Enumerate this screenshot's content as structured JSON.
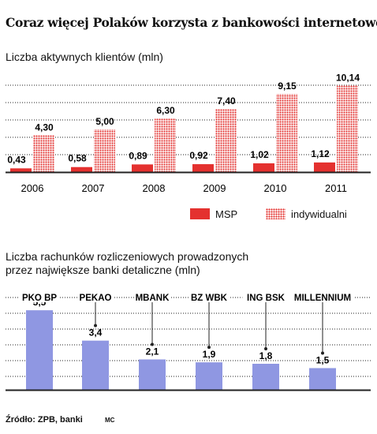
{
  "title": "Coraz więcej Polaków korzysta z bankowości internetowej",
  "chart1_subtitle": "Liczba aktywnych klientów (mln)",
  "chart2_subtitle": "Liczba rachunków rozliczeniowych prowadzonych przez największe banki detaliczne (mln)",
  "source": "Źródło: ZPB, banki",
  "author": "MC",
  "colors": {
    "msp": "#e4312f",
    "indywidualni": "#e4312f",
    "banks": "#8f97e2",
    "grid": "#222222"
  },
  "legend": {
    "msp": "MSP",
    "indywidualni": "indywidualni"
  },
  "chart_data": [
    {
      "type": "bar",
      "categories": [
        "2006",
        "2007",
        "2008",
        "2009",
        "2010",
        "2011"
      ],
      "series": [
        {
          "name": "MSP",
          "values": [
            0.43,
            0.58,
            0.89,
            0.92,
            1.02,
            1.12
          ],
          "labels": [
            "0,43",
            "0,58",
            "0,89",
            "0,92",
            "1,02",
            "1,12"
          ]
        },
        {
          "name": "indywidualni",
          "values": [
            4.3,
            5.0,
            6.3,
            7.4,
            9.15,
            10.14
          ],
          "labels": [
            "4,30",
            "5,00",
            "6,30",
            "7,40",
            "9,15",
            "10,14"
          ]
        }
      ],
      "ylim": [
        0,
        11
      ],
      "grid": true,
      "legend_position": "bottom"
    },
    {
      "type": "bar",
      "categories": [
        "PKO BP",
        "PEKAO",
        "MBANK",
        "BZ WBK",
        "ING BSK",
        "MILLENNIUM"
      ],
      "values": [
        5.5,
        3.4,
        2.1,
        1.9,
        1.8,
        1.5
      ],
      "labels": [
        "5,5",
        "3,4",
        "2,1",
        "1,9",
        "1,8",
        "1,5"
      ],
      "ylim": [
        0,
        6
      ],
      "grid": true
    }
  ]
}
